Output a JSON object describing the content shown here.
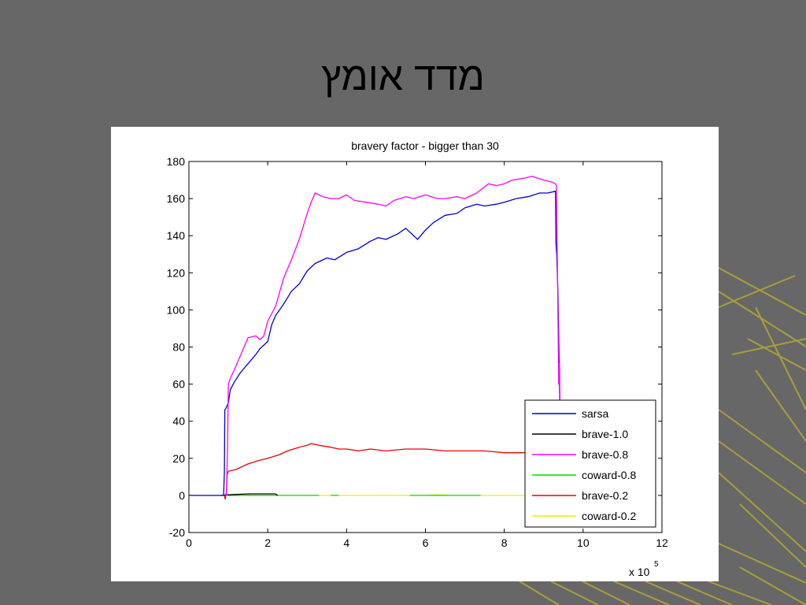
{
  "slide": {
    "title": "מדד אומץ",
    "background_color": "#676767",
    "decoration_color": "#a89f3a"
  },
  "chart_data": {
    "type": "line",
    "title": "bravery factor - bigger than 30",
    "xlabel": "",
    "ylabel": "",
    "x_multiplier_label": {
      "base": "x 10",
      "exponent": "5"
    },
    "xlim": [
      0,
      12
    ],
    "ylim": [
      -20,
      180
    ],
    "x_ticks": [
      0,
      2,
      4,
      6,
      8,
      10,
      12
    ],
    "y_ticks": [
      -20,
      0,
      20,
      40,
      60,
      80,
      100,
      120,
      140,
      160,
      180
    ],
    "grid": false,
    "legend_position": "bottom-right",
    "series": [
      {
        "name": "sarsa",
        "color": "#0000dd",
        "points": [
          [
            0,
            0
          ],
          [
            0.88,
            0
          ],
          [
            0.9,
            13
          ],
          [
            0.91,
            46
          ],
          [
            0.94,
            47
          ],
          [
            1.0,
            50
          ],
          [
            1.05,
            57
          ],
          [
            1.15,
            61
          ],
          [
            1.3,
            66
          ],
          [
            1.5,
            71
          ],
          [
            1.7,
            76
          ],
          [
            1.8,
            79
          ],
          [
            2.0,
            83
          ],
          [
            2.1,
            92
          ],
          [
            2.2,
            97
          ],
          [
            2.4,
            103
          ],
          [
            2.6,
            110
          ],
          [
            2.8,
            114
          ],
          [
            3.0,
            121
          ],
          [
            3.2,
            125
          ],
          [
            3.5,
            128
          ],
          [
            3.7,
            127
          ],
          [
            4.0,
            131
          ],
          [
            4.3,
            133
          ],
          [
            4.6,
            137
          ],
          [
            4.8,
            139
          ],
          [
            5.0,
            138
          ],
          [
            5.3,
            141
          ],
          [
            5.5,
            144
          ],
          [
            5.8,
            138
          ],
          [
            6.0,
            143
          ],
          [
            6.2,
            147
          ],
          [
            6.5,
            151
          ],
          [
            6.8,
            152
          ],
          [
            7.0,
            155
          ],
          [
            7.3,
            157
          ],
          [
            7.5,
            156
          ],
          [
            7.8,
            157
          ],
          [
            8.0,
            158
          ],
          [
            8.3,
            160
          ],
          [
            8.6,
            161
          ],
          [
            8.9,
            163
          ],
          [
            9.1,
            163
          ],
          [
            9.3,
            164
          ],
          [
            9.31,
            136
          ],
          [
            9.33,
            130
          ],
          [
            9.36,
            110
          ],
          [
            9.4,
            60
          ],
          [
            9.45,
            0
          ],
          [
            11,
            0
          ]
        ]
      },
      {
        "name": "brave-1.0",
        "color": "#000000",
        "points": [
          [
            0.8,
            0
          ],
          [
            1.0,
            0.3
          ],
          [
            1.5,
            0.8
          ],
          [
            2.2,
            0.8
          ],
          [
            2.25,
            0
          ]
        ]
      },
      {
        "name": "brave-0.8",
        "color": "#ff00ff",
        "points": [
          [
            0.95,
            0
          ],
          [
            0.98,
            25
          ],
          [
            1.0,
            60
          ],
          [
            1.05,
            63
          ],
          [
            1.2,
            70
          ],
          [
            1.4,
            80
          ],
          [
            1.5,
            85
          ],
          [
            1.7,
            86
          ],
          [
            1.8,
            84
          ],
          [
            1.9,
            86
          ],
          [
            2.0,
            94
          ],
          [
            2.2,
            102
          ],
          [
            2.4,
            117
          ],
          [
            2.6,
            127
          ],
          [
            2.8,
            138
          ],
          [
            3.0,
            152
          ],
          [
            3.1,
            158
          ],
          [
            3.2,
            163
          ],
          [
            3.4,
            161
          ],
          [
            3.6,
            160
          ],
          [
            3.8,
            160
          ],
          [
            4.0,
            162
          ],
          [
            4.2,
            159
          ],
          [
            4.5,
            158
          ],
          [
            4.8,
            157
          ],
          [
            5.0,
            156
          ],
          [
            5.2,
            159
          ],
          [
            5.5,
            161
          ],
          [
            5.7,
            160
          ],
          [
            6.0,
            162
          ],
          [
            6.3,
            160
          ],
          [
            6.5,
            160
          ],
          [
            6.8,
            161
          ],
          [
            7.0,
            160
          ],
          [
            7.3,
            163
          ],
          [
            7.6,
            168
          ],
          [
            7.8,
            167
          ],
          [
            8.0,
            168
          ],
          [
            8.2,
            170
          ],
          [
            8.5,
            171
          ],
          [
            8.7,
            172
          ],
          [
            9.0,
            170
          ],
          [
            9.2,
            169
          ],
          [
            9.3,
            168
          ],
          [
            9.32,
            167
          ],
          [
            9.35,
            120
          ],
          [
            9.38,
            60
          ],
          [
            9.4,
            71
          ],
          [
            9.42,
            40
          ],
          [
            9.45,
            0
          ],
          [
            11,
            0
          ]
        ]
      },
      {
        "name": "coward-0.8",
        "color": "#00dd00",
        "points": [
          [
            1.0,
            0
          ],
          [
            2.0,
            0
          ],
          [
            3.3,
            0
          ],
          [
            3.35,
            null
          ],
          [
            3.6,
            0
          ],
          [
            3.8,
            0
          ],
          [
            3.85,
            null
          ],
          [
            5.6,
            0
          ],
          [
            7.4,
            0
          ]
        ]
      },
      {
        "name": "brave-0.2",
        "color": "#ee0000",
        "points": [
          [
            0.9,
            0
          ],
          [
            0.92,
            -2
          ],
          [
            0.95,
            2
          ],
          [
            0.97,
            11
          ],
          [
            1.0,
            13
          ],
          [
            1.2,
            14
          ],
          [
            1.5,
            17
          ],
          [
            1.8,
            19
          ],
          [
            2.0,
            20
          ],
          [
            2.3,
            22
          ],
          [
            2.5,
            24
          ],
          [
            2.8,
            26
          ],
          [
            3.0,
            27
          ],
          [
            3.1,
            28
          ],
          [
            3.3,
            27
          ],
          [
            3.6,
            26
          ],
          [
            3.8,
            25
          ],
          [
            4.0,
            25
          ],
          [
            4.3,
            24
          ],
          [
            4.6,
            25
          ],
          [
            5.0,
            24
          ],
          [
            5.5,
            25
          ],
          [
            6.0,
            25
          ],
          [
            6.5,
            24
          ],
          [
            7.0,
            24
          ],
          [
            7.5,
            24
          ],
          [
            8.0,
            23
          ],
          [
            8.5,
            23
          ],
          [
            8.6,
            23
          ]
        ]
      },
      {
        "name": "coward-0.2",
        "color": "#eeee00",
        "points": [
          [
            0,
            0
          ],
          [
            0.9,
            0
          ],
          [
            1.0,
            0.3
          ],
          [
            1.2,
            0.8
          ],
          [
            1.4,
            0.5
          ],
          [
            1.6,
            0
          ],
          [
            6.0,
            0
          ],
          [
            6.3,
            0.4
          ],
          [
            6.6,
            0
          ],
          [
            8.6,
            0
          ]
        ]
      }
    ]
  }
}
